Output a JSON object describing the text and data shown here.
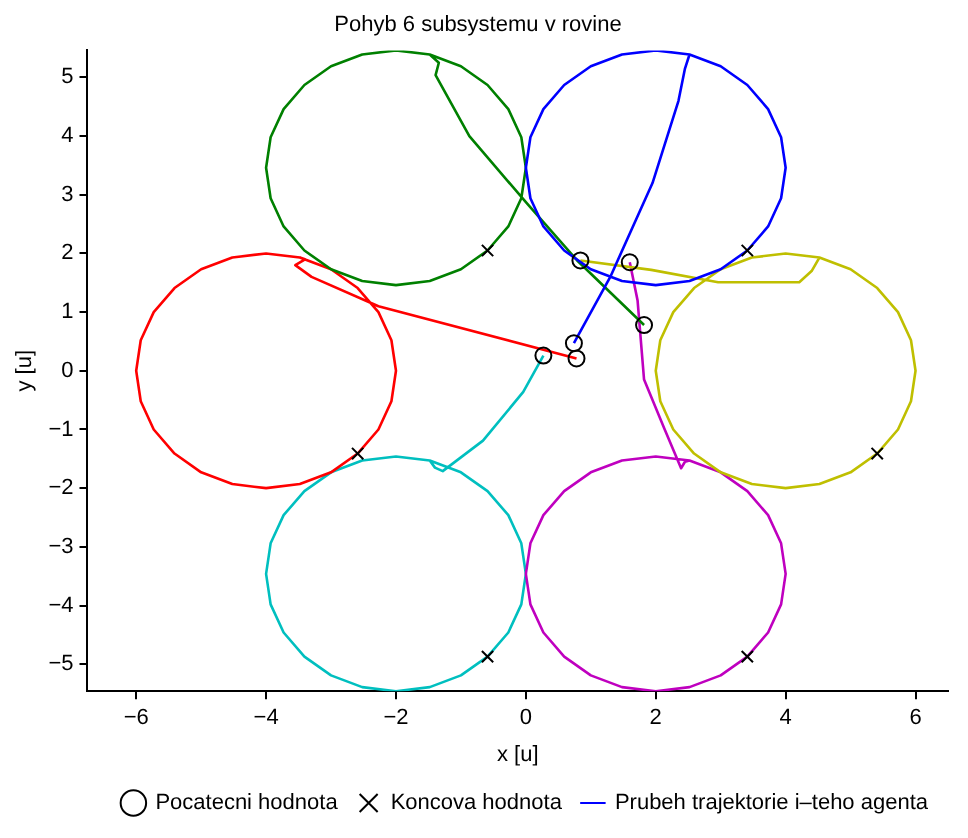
{
  "chart_data": {
    "type": "line",
    "title": "Pohyb 6 subsystemu v rovine",
    "xlabel": "x [u]",
    "ylabel": "y [u]",
    "xlim": [
      -6.75,
      6.5
    ],
    "ylim": [
      -5.46,
      5.46
    ],
    "xticks": [
      -6,
      -4,
      -2,
      0,
      2,
      4,
      6
    ],
    "yticks": [
      -5,
      -4,
      -3,
      -2,
      -1,
      0,
      1,
      2,
      3,
      4,
      5
    ],
    "grid": false,
    "legend": "bottom right",
    "line_style": "solid",
    "series": [
      {
        "name": "Pocatecni hodnota",
        "type": "scatter",
        "marker": "circle",
        "color": "#000000",
        "x": [
          0.74,
          1.82,
          0.78,
          0.84,
          1.6,
          0.27
        ],
        "values": [
          0.47,
          0.78,
          0.21,
          1.88,
          1.85,
          0.26
        ]
      },
      {
        "name": "Koncova hodnota",
        "type": "scatter",
        "marker": "cross",
        "color": "#000000",
        "x": [
          3.41,
          -0.59,
          -2.59,
          5.41,
          3.41,
          -0.59
        ],
        "values": [
          2.05,
          2.05,
          -1.41,
          -1.41,
          -4.87,
          -4.87
        ]
      },
      {
        "name": "Prubeh trajektorie i–teho agenta",
        "color": "#0000ff",
        "marker": "none",
        "x": [
          0.74,
          1.3,
          1.95,
          2.35,
          2.45,
          2.52,
          3,
          3.41,
          3.73,
          3.93,
          4,
          3.93,
          3.73,
          3.41,
          3,
          2.52,
          2,
          1.48,
          1,
          0.59,
          0.27,
          0.07,
          0,
          0.07,
          0.27,
          0.59,
          1,
          1.48,
          2,
          2.52
        ],
        "values": [
          0.47,
          1.6,
          3.2,
          4.6,
          5.15,
          5.39,
          5.19,
          4.87,
          4.46,
          3.98,
          3.46,
          2.94,
          2.46,
          2.05,
          1.73,
          1.53,
          1.46,
          1.53,
          1.73,
          2.05,
          2.46,
          2.94,
          3.46,
          3.98,
          4.46,
          4.87,
          5.19,
          5.39,
          5.46,
          5.39
        ]
      },
      {
        "color": "#008000",
        "marker": "none",
        "x": [
          1.82,
          0.79,
          0.01,
          -0.87,
          -1.39,
          -1.34,
          -1.48,
          -1,
          -0.59,
          -0.27,
          -0.07,
          0,
          -0.07,
          -0.27,
          -0.59,
          -1,
          -1.48,
          -2,
          -2.52,
          -3,
          -3.41,
          -3.73,
          -3.93,
          -4,
          -3.93,
          -3.73,
          -3.41,
          -3,
          -2.52,
          -2,
          -1.48
        ],
        "values": [
          0.78,
          1.88,
          2.86,
          4.0,
          5.04,
          5.25,
          5.39,
          5.19,
          4.87,
          4.46,
          3.98,
          3.46,
          2.94,
          2.46,
          2.05,
          1.73,
          1.53,
          1.46,
          1.53,
          1.73,
          2.05,
          2.46,
          2.94,
          3.46,
          3.98,
          4.46,
          4.87,
          5.19,
          5.39,
          5.46,
          5.39
        ]
      },
      {
        "color": "#ff0000",
        "marker": "none",
        "x": [
          0.78,
          -2.27,
          -3.3,
          -3.55,
          -3.4,
          -3.48,
          -3,
          -2.59,
          -2.27,
          -2.07,
          -2,
          -2.07,
          -2.27,
          -2.59,
          -3,
          -3.48,
          -4,
          -4.52,
          -5,
          -5.41,
          -5.73,
          -5.93,
          -6,
          -5.93,
          -5.73,
          -5.41,
          -5,
          -4.52,
          -4,
          -3.48
        ],
        "values": [
          0.21,
          1.1,
          1.6,
          1.8,
          1.9,
          1.93,
          1.73,
          1.41,
          1,
          0.52,
          0,
          -0.52,
          -1,
          -1.41,
          -1.73,
          -1.93,
          -2,
          -1.93,
          -1.73,
          -1.41,
          -1,
          -0.52,
          0,
          0.52,
          1,
          1.41,
          1.73,
          1.93,
          2,
          1.93
        ]
      },
      {
        "color": "#bfbf00",
        "marker": "none",
        "x": [
          0.84,
          1.93,
          2.96,
          4.21,
          4.4,
          4.52,
          5,
          5.41,
          5.73,
          5.93,
          6,
          5.93,
          5.73,
          5.41,
          5,
          4.52,
          4,
          3.48,
          3,
          2.59,
          2.27,
          2.07,
          2,
          2.07,
          2.27,
          2.59,
          3,
          3.48,
          4,
          4.52
        ],
        "values": [
          1.88,
          1.72,
          1.51,
          1.51,
          1.7,
          1.93,
          1.73,
          1.41,
          1,
          0.52,
          0,
          -0.52,
          -1,
          -1.41,
          -1.73,
          -1.93,
          -2,
          -1.93,
          -1.73,
          -1.41,
          -1,
          -0.52,
          0,
          0.52,
          1,
          1.41,
          1.73,
          1.93,
          2,
          1.93
        ]
      },
      {
        "color": "#bf00bf",
        "marker": "none",
        "x": [
          1.6,
          1.72,
          1.82,
          2.13,
          2.39,
          2.45,
          2.52,
          3,
          3.41,
          3.73,
          3.93,
          4,
          3.93,
          3.73,
          3.41,
          3,
          2.52,
          2,
          1.48,
          1,
          0.59,
          0.27,
          0.07,
          0,
          0.07,
          0.27,
          0.59,
          1,
          1.48,
          2,
          2.52
        ],
        "values": [
          1.85,
          1.2,
          -0.15,
          -0.98,
          -1.66,
          -1.55,
          -1.53,
          -1.73,
          -2.05,
          -2.46,
          -2.94,
          -3.46,
          -3.98,
          -4.46,
          -4.87,
          -5.19,
          -5.39,
          -5.46,
          -5.39,
          -5.19,
          -4.87,
          -4.46,
          -3.98,
          -3.46,
          -2.94,
          -2.46,
          -2.05,
          -1.73,
          -1.53,
          -1.46,
          -1.53
        ]
      },
      {
        "color": "#00bfbf",
        "marker": "none",
        "x": [
          0.27,
          -0.04,
          -0.66,
          -1.28,
          -1.4,
          -1.48,
          -1,
          -0.59,
          -0.27,
          -0.07,
          0,
          -0.07,
          -0.27,
          -0.59,
          -1,
          -1.48,
          -2,
          -2.52,
          -3,
          -3.41,
          -3.73,
          -3.93,
          -4,
          -3.93,
          -3.73,
          -3.41,
          -3,
          -2.52,
          -2,
          -1.48
        ],
        "values": [
          0.26,
          -0.36,
          -1.19,
          -1.71,
          -1.65,
          -1.53,
          -1.73,
          -2.05,
          -2.46,
          -2.94,
          -3.46,
          -3.98,
          -4.46,
          -4.87,
          -5.19,
          -5.39,
          -5.46,
          -5.39,
          -5.19,
          -4.87,
          -4.46,
          -3.98,
          -3.46,
          -2.94,
          -2.46,
          -2.05,
          -1.73,
          -1.53,
          -1.46,
          -1.53
        ]
      }
    ]
  }
}
